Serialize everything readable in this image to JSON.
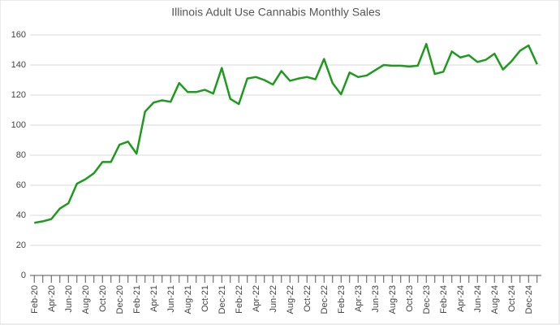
{
  "chart_data": {
    "type": "line",
    "title": "Illinois Adult Use Cannabis Monthly Sales",
    "categories": [
      "Feb-20",
      null,
      "Apr-20",
      null,
      "Jun-20",
      null,
      "Aug-20",
      null,
      "Oct-20",
      null,
      "Dec-20",
      null,
      "Feb-21",
      null,
      "Apr-21",
      null,
      "Jun-21",
      null,
      "Aug-21",
      null,
      "Oct-21",
      null,
      "Dec-21",
      null,
      "Feb-22",
      null,
      "Apr-22",
      null,
      "Jun-22",
      null,
      "Aug-22",
      null,
      "Oct-22",
      null,
      "Dec-22",
      null,
      "Feb-23",
      null,
      "Apr-23",
      null,
      "Jun-23",
      null,
      "Aug-23",
      null,
      "Oct-23",
      null,
      "Dec-23",
      null,
      "Feb-24",
      null,
      "Apr-24",
      null,
      "Jun-24",
      null,
      "Aug-24",
      null,
      "Oct-24",
      null,
      "Dec-24",
      null
    ],
    "values": [
      35,
      36,
      37.5,
      44.5,
      48,
      61,
      64,
      68,
      75.5,
      75.5,
      87,
      89,
      81,
      109,
      115,
      116.5,
      115.5,
      128,
      122,
      122,
      123.5,
      121,
      138,
      117.5,
      114,
      131,
      132,
      130,
      127,
      136,
      129.5,
      131,
      132,
      130.5,
      144,
      128,
      120.5,
      135,
      132,
      133,
      136.5,
      140,
      139.5,
      139.5,
      139,
      139.5,
      154,
      134,
      135.5,
      149,
      145,
      146.5,
      142,
      143.5,
      147.5,
      137,
      142.5,
      149.5,
      153,
      140.5
    ],
    "color": "#1e9a1e",
    "ylim": [
      0,
      160
    ],
    "yticks": [
      0,
      20,
      40,
      60,
      80,
      100,
      120,
      140,
      160
    ],
    "grid": true
  }
}
